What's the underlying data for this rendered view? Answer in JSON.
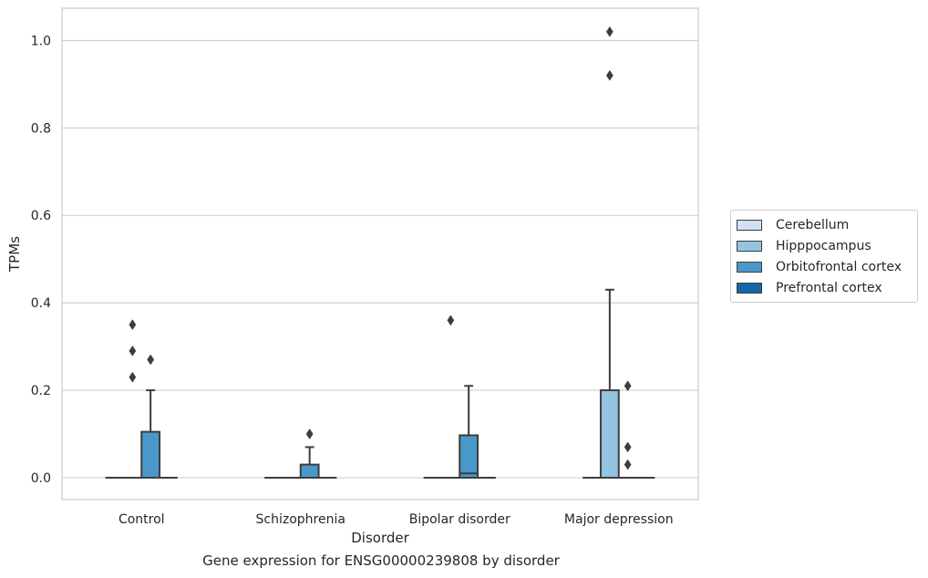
{
  "chart_data": {
    "type": "box",
    "xlabel": "Disorder",
    "ylabel": "TPMs",
    "caption": "Gene expression for ENSG00000239808 by disorder",
    "ylim": [
      -0.05,
      1.07
    ],
    "yticks": [
      0.0,
      0.2,
      0.4,
      0.6,
      0.8,
      1.0
    ],
    "ytick_labels": [
      "0.0",
      "0.2",
      "0.4",
      "0.6",
      "0.8",
      "1.0"
    ],
    "grid": true,
    "legend_position": "right",
    "categories": [
      "Control",
      "Schizophrenia",
      "Bipolar disorder",
      "Major depression"
    ],
    "series": [
      {
        "name": "Cerebellum",
        "color": "#d0e1f2",
        "boxes": [
          {
            "q1": 0,
            "median": 0,
            "q3": 0,
            "whisker_low": 0,
            "whisker_high": 0,
            "outliers": []
          },
          {
            "q1": 0,
            "median": 0,
            "q3": 0,
            "whisker_low": 0,
            "whisker_high": 0,
            "outliers": []
          },
          {
            "q1": 0,
            "median": 0,
            "q3": 0,
            "whisker_low": 0,
            "whisker_high": 0,
            "outliers": []
          },
          {
            "q1": 0,
            "median": 0,
            "q3": 0,
            "whisker_low": 0,
            "whisker_high": 0,
            "outliers": []
          }
        ]
      },
      {
        "name": "Hipppocampus",
        "color": "#94c4df",
        "boxes": [
          {
            "q1": 0,
            "median": 0,
            "q3": 0,
            "whisker_low": 0,
            "whisker_high": 0,
            "outliers": [
              0.29,
              0.35,
              0.23
            ]
          },
          {
            "q1": 0,
            "median": 0,
            "q3": 0,
            "whisker_low": 0,
            "whisker_high": 0,
            "outliers": []
          },
          {
            "q1": 0,
            "median": 0,
            "q3": 0,
            "whisker_low": 0,
            "whisker_high": 0,
            "outliers": [
              0.36
            ]
          },
          {
            "q1": 0,
            "median": 0,
            "q3": 0.2,
            "whisker_low": 0,
            "whisker_high": 0.43,
            "outliers": [
              1.02,
              0.92
            ]
          }
        ]
      },
      {
        "name": "Orbitofrontal cortex",
        "color": "#4a98c9",
        "boxes": [
          {
            "q1": 0,
            "median": 0,
            "q3": 0.105,
            "whisker_low": 0,
            "whisker_high": 0.2,
            "outliers": [
              0.27
            ]
          },
          {
            "q1": 0,
            "median": 0,
            "q3": 0.03,
            "whisker_low": 0,
            "whisker_high": 0.07,
            "outliers": [
              0.1
            ]
          },
          {
            "q1": 0,
            "median": 0.01,
            "q3": 0.097,
            "whisker_low": 0,
            "whisker_high": 0.21,
            "outliers": []
          },
          {
            "q1": 0,
            "median": 0,
            "q3": 0,
            "whisker_low": 0,
            "whisker_high": 0,
            "outliers": [
              0.21,
              0.07,
              0.03
            ]
          }
        ]
      },
      {
        "name": "Prefrontal cortex",
        "color": "#1764ab",
        "boxes": [
          {
            "q1": 0,
            "median": 0,
            "q3": 0,
            "whisker_low": 0,
            "whisker_high": 0,
            "outliers": []
          },
          {
            "q1": 0,
            "median": 0,
            "q3": 0,
            "whisker_low": 0,
            "whisker_high": 0,
            "outliers": []
          },
          {
            "q1": 0,
            "median": 0,
            "q3": 0,
            "whisker_low": 0,
            "whisker_high": 0,
            "outliers": []
          },
          {
            "q1": 0,
            "median": 0,
            "q3": 0,
            "whisker_low": 0,
            "whisker_high": 0,
            "outliers": []
          }
        ]
      }
    ]
  }
}
